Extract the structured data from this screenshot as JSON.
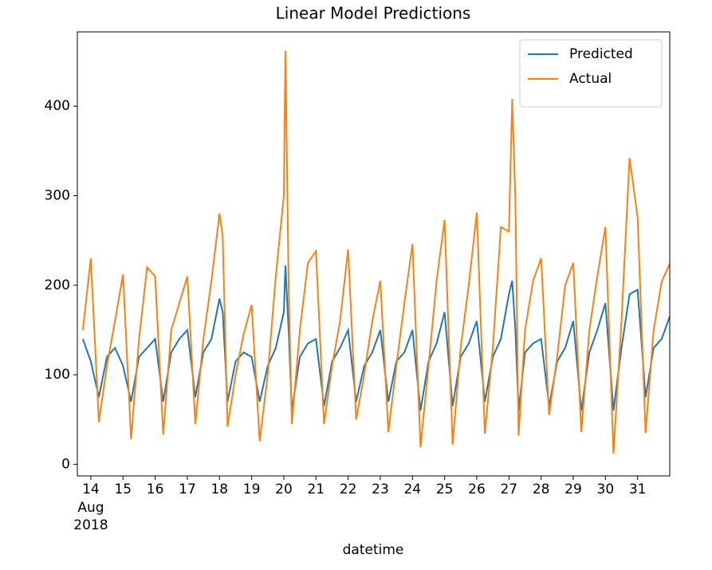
{
  "chart_data": {
    "type": "line",
    "title": "Linear Model Predictions",
    "x_label": "datetime",
    "x_sublabels": [
      "Aug",
      "2018"
    ],
    "x": [
      13.75,
      14.0,
      14.25,
      14.5,
      14.75,
      15.0,
      15.25,
      15.5,
      15.75,
      16.0,
      16.25,
      16.5,
      16.75,
      17.0,
      17.25,
      17.5,
      17.75,
      18.0,
      18.1,
      18.25,
      18.5,
      18.75,
      19.0,
      19.25,
      19.5,
      19.75,
      20.0,
      20.05,
      20.15,
      20.25,
      20.5,
      20.75,
      21.0,
      21.25,
      21.5,
      21.75,
      22.0,
      22.25,
      22.5,
      22.75,
      23.0,
      23.25,
      23.5,
      23.75,
      24.0,
      24.25,
      24.5,
      24.75,
      25.0,
      25.25,
      25.5,
      25.75,
      26.0,
      26.25,
      26.5,
      26.75,
      27.0,
      27.1,
      27.2,
      27.3,
      27.5,
      27.75,
      28.0,
      28.25,
      28.5,
      28.75,
      29.0,
      29.25,
      29.5,
      29.75,
      30.0,
      30.25,
      30.5,
      30.75,
      31.0,
      31.25,
      31.5,
      31.75,
      32.0
    ],
    "series": [
      {
        "name": "Predicted",
        "color": "#1f77b4",
        "values": [
          140,
          115,
          75,
          120,
          130,
          110,
          70,
          120,
          130,
          140,
          70,
          125,
          140,
          150,
          75,
          125,
          140,
          185,
          170,
          70,
          115,
          125,
          120,
          70,
          110,
          130,
          170,
          222,
          150,
          60,
          120,
          135,
          140,
          65,
          115,
          130,
          150,
          70,
          110,
          125,
          150,
          70,
          115,
          125,
          150,
          60,
          115,
          135,
          170,
          65,
          120,
          135,
          160,
          70,
          120,
          140,
          190,
          205,
          150,
          60,
          125,
          135,
          140,
          65,
          115,
          130,
          160,
          60,
          125,
          150,
          180,
          60,
          130,
          190,
          195,
          75,
          130,
          140,
          165
        ]
      },
      {
        "name": "Actual",
        "color": "#ff7f0e",
        "values": [
          150,
          230,
          47,
          110,
          160,
          212,
          28,
          140,
          220,
          210,
          33,
          150,
          180,
          210,
          45,
          140,
          205,
          280,
          255,
          42,
          100,
          145,
          178,
          26,
          100,
          210,
          300,
          462,
          200,
          45,
          150,
          225,
          238,
          45,
          110,
          160,
          240,
          50,
          100,
          160,
          205,
          36,
          110,
          180,
          246,
          19,
          110,
          205,
          273,
          22,
          130,
          200,
          281,
          34,
          130,
          265,
          260,
          408,
          295,
          32,
          150,
          205,
          230,
          55,
          120,
          200,
          225,
          36,
          150,
          210,
          265,
          12,
          160,
          342,
          276,
          35,
          150,
          204,
          224
        ]
      }
    ],
    "xlim": [
      13.58,
      32.0
    ],
    "xticks": [
      14,
      15,
      16,
      17,
      18,
      19,
      20,
      21,
      22,
      23,
      24,
      25,
      26,
      27,
      28,
      29,
      30,
      31
    ],
    "ylim": [
      -13,
      483
    ],
    "yticks": [
      0,
      100,
      200,
      300,
      400
    ],
    "legend": "upper right"
  }
}
